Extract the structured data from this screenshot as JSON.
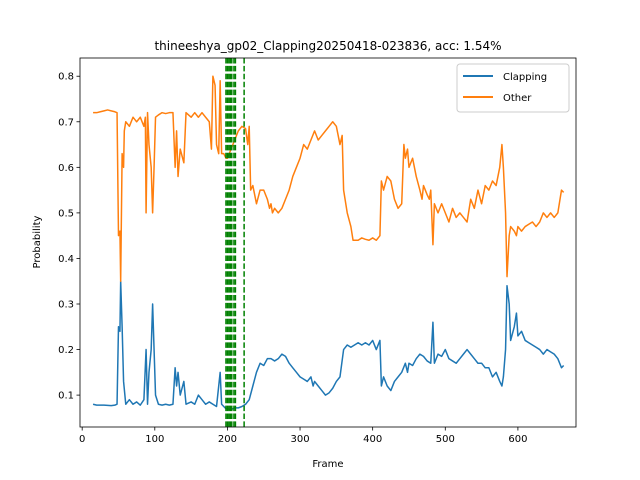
{
  "chart_data": {
    "type": "line",
    "title": "thineeshya_gp02_Clapping20250418-023836,  acc: 1.54%",
    "xlabel": "Frame",
    "ylabel": "Probability",
    "xlim": [
      -3,
      680
    ],
    "ylim": [
      0.03,
      0.84
    ],
    "xticks": [
      0,
      100,
      200,
      300,
      400,
      500,
      600
    ],
    "yticks": [
      0.1,
      0.2,
      0.3,
      0.4,
      0.5,
      0.6,
      0.7,
      0.8
    ],
    "legend_position": "top-right",
    "grid": false,
    "vlines": {
      "color": "#008000",
      "style": "dashed",
      "x": [
        198,
        200,
        202,
        204,
        206,
        209,
        211,
        223
      ]
    },
    "series": [
      {
        "name": "Clapping",
        "color": "#1f77b4",
        "points": [
          [
            15,
            0.08
          ],
          [
            20,
            0.078
          ],
          [
            30,
            0.078
          ],
          [
            40,
            0.077
          ],
          [
            45,
            0.078
          ],
          [
            48,
            0.08
          ],
          [
            50,
            0.25
          ],
          [
            52,
            0.24
          ],
          [
            53,
            0.35
          ],
          [
            55,
            0.25
          ],
          [
            57,
            0.13
          ],
          [
            60,
            0.08
          ],
          [
            65,
            0.09
          ],
          [
            70,
            0.08
          ],
          [
            75,
            0.085
          ],
          [
            80,
            0.078
          ],
          [
            85,
            0.09
          ],
          [
            88,
            0.2
          ],
          [
            90,
            0.08
          ],
          [
            92,
            0.15
          ],
          [
            95,
            0.2
          ],
          [
            97,
            0.3
          ],
          [
            99,
            0.2
          ],
          [
            101,
            0.1
          ],
          [
            105,
            0.08
          ],
          [
            110,
            0.078
          ],
          [
            115,
            0.08
          ],
          [
            120,
            0.078
          ],
          [
            125,
            0.08
          ],
          [
            128,
            0.16
          ],
          [
            130,
            0.12
          ],
          [
            132,
            0.15
          ],
          [
            135,
            0.1
          ],
          [
            140,
            0.13
          ],
          [
            143,
            0.08
          ],
          [
            150,
            0.085
          ],
          [
            155,
            0.08
          ],
          [
            160,
            0.1
          ],
          [
            165,
            0.09
          ],
          [
            170,
            0.08
          ],
          [
            175,
            0.085
          ],
          [
            180,
            0.08
          ],
          [
            185,
            0.075
          ],
          [
            190,
            0.15
          ],
          [
            192,
            0.08
          ],
          [
            195,
            0.075
          ],
          [
            198,
            0.07
          ],
          [
            200,
            0.07
          ],
          [
            205,
            0.068
          ],
          [
            210,
            0.072
          ],
          [
            215,
            0.072
          ],
          [
            220,
            0.075
          ],
          [
            225,
            0.08
          ],
          [
            230,
            0.09
          ],
          [
            235,
            0.12
          ],
          [
            240,
            0.15
          ],
          [
            245,
            0.17
          ],
          [
            250,
            0.165
          ],
          [
            255,
            0.18
          ],
          [
            260,
            0.18
          ],
          [
            265,
            0.175
          ],
          [
            270,
            0.18
          ],
          [
            275,
            0.19
          ],
          [
            280,
            0.185
          ],
          [
            285,
            0.17
          ],
          [
            290,
            0.16
          ],
          [
            295,
            0.15
          ],
          [
            300,
            0.14
          ],
          [
            305,
            0.135
          ],
          [
            310,
            0.13
          ],
          [
            315,
            0.14
          ],
          [
            318,
            0.12
          ],
          [
            320,
            0.13
          ],
          [
            325,
            0.12
          ],
          [
            330,
            0.11
          ],
          [
            335,
            0.1
          ],
          [
            340,
            0.105
          ],
          [
            345,
            0.115
          ],
          [
            350,
            0.13
          ],
          [
            355,
            0.14
          ],
          [
            360,
            0.2
          ],
          [
            365,
            0.21
          ],
          [
            370,
            0.205
          ],
          [
            375,
            0.21
          ],
          [
            380,
            0.215
          ],
          [
            385,
            0.21
          ],
          [
            390,
            0.215
          ],
          [
            395,
            0.21
          ],
          [
            400,
            0.22
          ],
          [
            405,
            0.2
          ],
          [
            410,
            0.22
          ],
          [
            412,
            0.12
          ],
          [
            415,
            0.14
          ],
          [
            420,
            0.12
          ],
          [
            425,
            0.11
          ],
          [
            430,
            0.13
          ],
          [
            435,
            0.14
          ],
          [
            440,
            0.15
          ],
          [
            445,
            0.17
          ],
          [
            448,
            0.15
          ],
          [
            450,
            0.17
          ],
          [
            455,
            0.165
          ],
          [
            460,
            0.18
          ],
          [
            465,
            0.19
          ],
          [
            470,
            0.185
          ],
          [
            475,
            0.175
          ],
          [
            480,
            0.17
          ],
          [
            483,
            0.26
          ],
          [
            485,
            0.17
          ],
          [
            490,
            0.19
          ],
          [
            495,
            0.185
          ],
          [
            500,
            0.2
          ],
          [
            505,
            0.18
          ],
          [
            510,
            0.175
          ],
          [
            515,
            0.17
          ],
          [
            520,
            0.18
          ],
          [
            525,
            0.19
          ],
          [
            530,
            0.2
          ],
          [
            535,
            0.19
          ],
          [
            540,
            0.18
          ],
          [
            545,
            0.17
          ],
          [
            550,
            0.17
          ],
          [
            555,
            0.16
          ],
          [
            560,
            0.16
          ],
          [
            565,
            0.14
          ],
          [
            570,
            0.15
          ],
          [
            575,
            0.13
          ],
          [
            578,
            0.12
          ],
          [
            580,
            0.14
          ],
          [
            583,
            0.2
          ],
          [
            585,
            0.34
          ],
          [
            588,
            0.3
          ],
          [
            590,
            0.22
          ],
          [
            595,
            0.25
          ],
          [
            598,
            0.28
          ],
          [
            600,
            0.23
          ],
          [
            605,
            0.24
          ],
          [
            610,
            0.22
          ],
          [
            615,
            0.215
          ],
          [
            620,
            0.21
          ],
          [
            625,
            0.205
          ],
          [
            630,
            0.2
          ],
          [
            635,
            0.19
          ],
          [
            640,
            0.2
          ],
          [
            645,
            0.195
          ],
          [
            650,
            0.19
          ],
          [
            655,
            0.18
          ],
          [
            660,
            0.16
          ],
          [
            663,
            0.165
          ]
        ]
      },
      {
        "name": "Other",
        "color": "#ff7f0e",
        "points": [
          [
            15,
            0.72
          ],
          [
            20,
            0.72
          ],
          [
            25,
            0.722
          ],
          [
            30,
            0.724
          ],
          [
            35,
            0.726
          ],
          [
            40,
            0.724
          ],
          [
            45,
            0.722
          ],
          [
            48,
            0.72
          ],
          [
            50,
            0.45
          ],
          [
            52,
            0.46
          ],
          [
            53,
            0.35
          ],
          [
            55,
            0.63
          ],
          [
            57,
            0.6
          ],
          [
            58,
            0.68
          ],
          [
            60,
            0.7
          ],
          [
            65,
            0.69
          ],
          [
            70,
            0.71
          ],
          [
            75,
            0.7
          ],
          [
            80,
            0.71
          ],
          [
            85,
            0.69
          ],
          [
            87,
            0.71
          ],
          [
            88,
            0.5
          ],
          [
            90,
            0.72
          ],
          [
            92,
            0.65
          ],
          [
            95,
            0.6
          ],
          [
            97,
            0.5
          ],
          [
            99,
            0.6
          ],
          [
            101,
            0.71
          ],
          [
            105,
            0.715
          ],
          [
            110,
            0.72
          ],
          [
            115,
            0.718
          ],
          [
            120,
            0.72
          ],
          [
            125,
            0.72
          ],
          [
            128,
            0.6
          ],
          [
            130,
            0.68
          ],
          [
            132,
            0.58
          ],
          [
            135,
            0.64
          ],
          [
            140,
            0.61
          ],
          [
            143,
            0.72
          ],
          [
            150,
            0.71
          ],
          [
            155,
            0.72
          ],
          [
            160,
            0.71
          ],
          [
            165,
            0.72
          ],
          [
            170,
            0.71
          ],
          [
            175,
            0.7
          ],
          [
            178,
            0.64
          ],
          [
            180,
            0.8
          ],
          [
            183,
            0.78
          ],
          [
            185,
            0.65
          ],
          [
            188,
            0.63
          ],
          [
            190,
            0.79
          ],
          [
            192,
            0.63
          ],
          [
            195,
            0.63
          ],
          [
            198,
            0.62
          ],
          [
            200,
            0.62
          ],
          [
            205,
            0.64
          ],
          [
            210,
            0.66
          ],
          [
            215,
            0.68
          ],
          [
            220,
            0.69
          ],
          [
            225,
            0.685
          ],
          [
            228,
            0.65
          ],
          [
            230,
            0.69
          ],
          [
            232,
            0.55
          ],
          [
            235,
            0.56
          ],
          [
            240,
            0.52
          ],
          [
            245,
            0.55
          ],
          [
            250,
            0.55
          ],
          [
            255,
            0.53
          ],
          [
            258,
            0.51
          ],
          [
            260,
            0.52
          ],
          [
            262,
            0.5
          ],
          [
            265,
            0.51
          ],
          [
            270,
            0.5
          ],
          [
            275,
            0.51
          ],
          [
            280,
            0.53
          ],
          [
            285,
            0.55
          ],
          [
            290,
            0.58
          ],
          [
            295,
            0.6
          ],
          [
            300,
            0.62
          ],
          [
            305,
            0.65
          ],
          [
            310,
            0.64
          ],
          [
            315,
            0.66
          ],
          [
            320,
            0.68
          ],
          [
            325,
            0.66
          ],
          [
            330,
            0.67
          ],
          [
            335,
            0.68
          ],
          [
            340,
            0.69
          ],
          [
            345,
            0.7
          ],
          [
            350,
            0.69
          ],
          [
            355,
            0.65
          ],
          [
            358,
            0.67
          ],
          [
            360,
            0.55
          ],
          [
            365,
            0.5
          ],
          [
            370,
            0.47
          ],
          [
            373,
            0.44
          ],
          [
            375,
            0.44
          ],
          [
            380,
            0.44
          ],
          [
            385,
            0.445
          ],
          [
            390,
            0.442
          ],
          [
            395,
            0.44
          ],
          [
            400,
            0.445
          ],
          [
            405,
            0.44
          ],
          [
            410,
            0.45
          ],
          [
            412,
            0.57
          ],
          [
            415,
            0.55
          ],
          [
            420,
            0.58
          ],
          [
            425,
            0.57
          ],
          [
            430,
            0.53
          ],
          [
            435,
            0.51
          ],
          [
            440,
            0.52
          ],
          [
            443,
            0.65
          ],
          [
            445,
            0.62
          ],
          [
            448,
            0.64
          ],
          [
            450,
            0.6
          ],
          [
            455,
            0.62
          ],
          [
            460,
            0.58
          ],
          [
            465,
            0.55
          ],
          [
            468,
            0.53
          ],
          [
            470,
            0.56
          ],
          [
            475,
            0.54
          ],
          [
            478,
            0.53
          ],
          [
            480,
            0.55
          ],
          [
            483,
            0.43
          ],
          [
            485,
            0.52
          ],
          [
            490,
            0.5
          ],
          [
            495,
            0.52
          ],
          [
            500,
            0.5
          ],
          [
            505,
            0.48
          ],
          [
            510,
            0.51
          ],
          [
            515,
            0.49
          ],
          [
            520,
            0.5
          ],
          [
            525,
            0.49
          ],
          [
            530,
            0.48
          ],
          [
            535,
            0.53
          ],
          [
            540,
            0.51
          ],
          [
            545,
            0.55
          ],
          [
            550,
            0.52
          ],
          [
            555,
            0.56
          ],
          [
            560,
            0.55
          ],
          [
            565,
            0.57
          ],
          [
            570,
            0.56
          ],
          [
            575,
            0.6
          ],
          [
            578,
            0.65
          ],
          [
            580,
            0.6
          ],
          [
            583,
            0.5
          ],
          [
            585,
            0.36
          ],
          [
            588,
            0.45
          ],
          [
            590,
            0.47
          ],
          [
            595,
            0.46
          ],
          [
            598,
            0.45
          ],
          [
            600,
            0.47
          ],
          [
            605,
            0.46
          ],
          [
            610,
            0.47
          ],
          [
            615,
            0.475
          ],
          [
            620,
            0.48
          ],
          [
            625,
            0.47
          ],
          [
            630,
            0.48
          ],
          [
            635,
            0.5
          ],
          [
            640,
            0.49
          ],
          [
            645,
            0.5
          ],
          [
            650,
            0.49
          ],
          [
            655,
            0.5
          ],
          [
            660,
            0.55
          ],
          [
            663,
            0.545
          ]
        ]
      }
    ]
  }
}
